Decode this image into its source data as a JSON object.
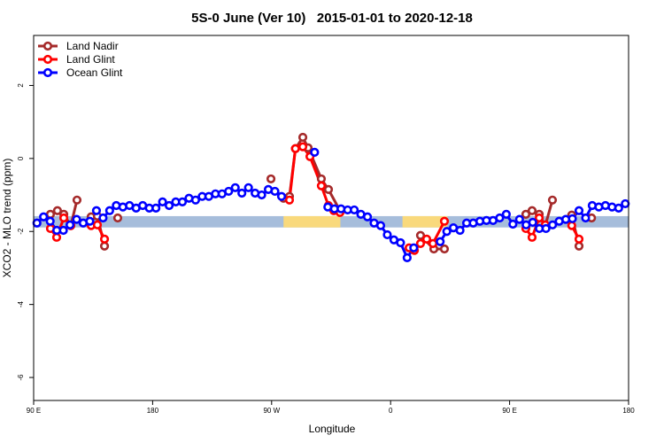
{
  "chart_data": {
    "type": "line",
    "title": "5S-0 June (Ver 10)   2015-01-01 to 2020-12-18",
    "xlabel": "Longitude",
    "ylabel": "XCO2 - MLO trend (ppm)",
    "xlim": [
      90,
      540
    ],
    "xticks": [
      {
        "value": 90,
        "label": "90 E"
      },
      {
        "value": 180,
        "label": "180"
      },
      {
        "value": 270,
        "label": "90 W"
      },
      {
        "value": 360,
        "label": "0"
      },
      {
        "value": 450,
        "label": "90 E"
      },
      {
        "value": 540,
        "label": "180"
      }
    ],
    "ylim": [
      -6.63,
      3.37
    ],
    "yticks": [
      -6,
      -4,
      -2,
      0,
      2
    ],
    "legend": "top-left",
    "strip": {
      "ylim": [
        -1.89,
        -1.58
      ],
      "segments": [
        {
          "from": 90,
          "to": 540,
          "color": "#a6bddb"
        },
        {
          "from": 279,
          "to": 322,
          "color": "#f9d97c"
        },
        {
          "from": 369,
          "to": 403,
          "color": "#f9d97c"
        }
      ]
    },
    "series": [
      {
        "name": "Land Nadir",
        "color": "#a52a2a",
        "x": [
          102.7,
          108,
          112.8,
          118.1,
          122.8,
          128,
          133.5,
          138.2,
          143.6,
          148,
          153.6,
          260,
          269.5,
          275,
          279,
          283.5,
          288,
          293.6,
          297.6,
          307.6,
          313,
          321.7,
          375,
          382.6,
          392.7,
          400.7,
          455,
          462.3,
          467,
          472.4,
          477,
          482.4,
          490,
          497,
          502.5,
          507,
          512
        ],
        "values": [
          -1.53,
          -1.43,
          -1.53,
          -1.84,
          -1.14,
          null,
          -1.6,
          -1.58,
          -2.4,
          null,
          -1.63,
          null,
          -0.56,
          null,
          -1.09,
          -1.04,
          0.27,
          0.58,
          0.29,
          -0.56,
          -0.85,
          -1.43,
          null,
          -2.11,
          -2.48,
          -2.48,
          null,
          -1.53,
          -1.43,
          -1.53,
          -1.84,
          -1.14,
          null,
          -1.55,
          -2.4,
          null,
          -1.63
        ]
      },
      {
        "name": "Land Glint",
        "color": "#ff0000",
        "x": [
          102.7,
          107.4,
          112.8,
          118.1,
          125,
          133.5,
          138.2,
          143.6,
          200,
          283.5,
          288,
          293.6,
          299,
          307.6,
          313,
          317,
          321.7,
          350,
          374,
          378,
          382.6,
          387.3,
          392,
          400.7,
          450,
          462.3,
          467,
          472.4,
          477,
          490,
          497,
          502.5
        ],
        "values": [
          -1.92,
          -2.16,
          -1.63,
          -1.84,
          null,
          -1.84,
          -1.82,
          -2.21,
          null,
          -1.14,
          0.27,
          0.32,
          0.05,
          -0.75,
          -1.29,
          -1.43,
          -1.48,
          null,
          -2.45,
          -2.52,
          -2.33,
          -2.21,
          -2.33,
          -1.72,
          null,
          -1.92,
          -2.16,
          -1.63,
          -1.82,
          null,
          -1.84,
          -2.21
        ]
      },
      {
        "name": "Ocean Glint",
        "color": "#0000ff",
        "x": [
          92.5,
          97.5,
          102.5,
          107.5,
          112.5,
          117.5,
          122.5,
          127.5,
          132.5,
          137.5,
          142.5,
          147.5,
          152.5,
          157.5,
          162.5,
          167.5,
          172.5,
          177.5,
          182.5,
          187.5,
          192.5,
          197.5,
          202.5,
          207.5,
          212.5,
          217.5,
          222.5,
          227.5,
          232.5,
          237.5,
          242.5,
          247.5,
          252.5,
          257.5,
          262.5,
          267.5,
          272.5,
          277.5,
          287.5,
          302.5,
          307.5,
          312.5,
          317.5,
          322.5,
          327.5,
          332.5,
          337.5,
          342.5,
          347.5,
          352.5,
          357.5,
          362.5,
          367.5,
          372.5,
          377.5,
          387.5,
          397.5,
          402.5,
          407.5,
          412.5,
          417.5,
          422.5,
          427.5,
          432.5,
          437.5,
          442.5,
          447.5,
          452.5,
          457.5,
          462.5,
          467.5,
          472.5,
          477.5,
          482.5,
          487.5,
          492.5,
          497.5,
          502.5,
          507.5,
          512.5,
          517.5,
          522.5,
          527.5,
          532.5,
          537.5
        ],
        "values": [
          -1.77,
          -1.6,
          -1.72,
          -1.97,
          -1.97,
          -1.82,
          -1.67,
          -1.77,
          -1.72,
          -1.43,
          -1.63,
          -1.43,
          -1.29,
          -1.33,
          -1.29,
          -1.36,
          -1.29,
          -1.36,
          -1.36,
          -1.19,
          -1.29,
          -1.19,
          -1.19,
          -1.09,
          -1.14,
          -1.04,
          -1.04,
          -0.97,
          -0.97,
          -0.9,
          -0.8,
          -0.95,
          -0.8,
          -0.95,
          -1.0,
          -0.85,
          -0.9,
          -1.04,
          null,
          0.17,
          null,
          -1.33,
          -1.38,
          -1.38,
          -1.41,
          -1.41,
          -1.53,
          -1.6,
          -1.77,
          -1.84,
          -2.09,
          -2.23,
          -2.31,
          -2.72,
          -2.45,
          null,
          -2.28,
          -2.0,
          -1.9,
          -1.97,
          -1.77,
          -1.77,
          -1.72,
          -1.7,
          -1.7,
          -1.63,
          -1.53,
          -1.8,
          -1.67,
          -1.82,
          -1.75,
          -1.92,
          -1.92,
          -1.82,
          -1.72,
          -1.67,
          -1.65,
          -1.43,
          -1.63,
          -1.29,
          -1.33,
          -1.29,
          -1.33,
          -1.36,
          -1.24
        ]
      }
    ]
  }
}
